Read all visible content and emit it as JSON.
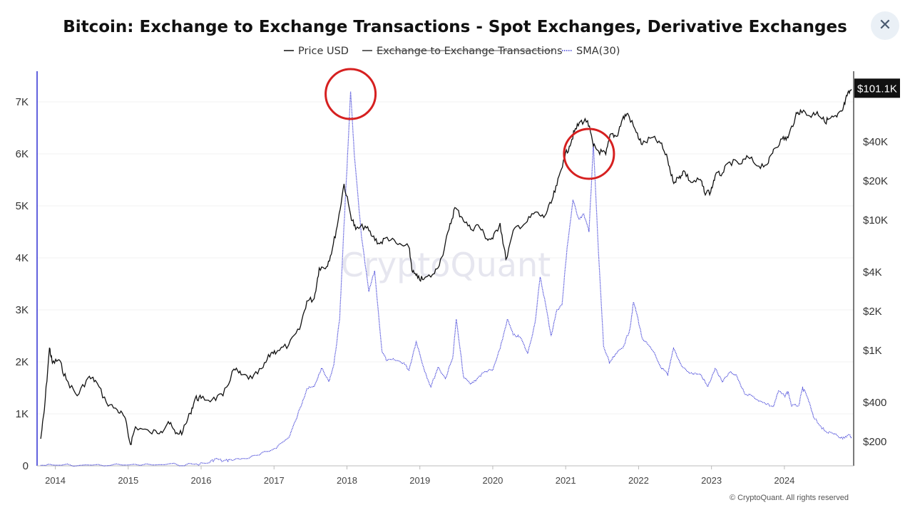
{
  "close_icon_glyph": "✕",
  "chart_data": {
    "type": "line",
    "title": "Bitcoin: Exchange to Exchange Transactions - Spot Exchanges, Derivative Exchanges",
    "legend": [
      {
        "name": "Price USD",
        "color": "#111111",
        "style": "solid",
        "hidden": false
      },
      {
        "name": "Exchange to Exchange Transactions",
        "color": "#333333",
        "style": "solid",
        "hidden": true
      },
      {
        "name": "SMA(30)",
        "color": "#3a3ad6",
        "style": "dotted",
        "hidden": false
      }
    ],
    "legend_position": "top-center",
    "x_ticks": [
      "2014",
      "2015",
      "2016",
      "2017",
      "2018",
      "2019",
      "2020",
      "2021",
      "2022",
      "2023",
      "2024"
    ],
    "x_range": [
      2013.75,
      2024.95
    ],
    "y_left": {
      "ticks": [
        "0",
        "1K",
        "2K",
        "3K",
        "4K",
        "5K",
        "6K",
        "7K"
      ],
      "range": [
        0,
        7300
      ]
    },
    "y_right": {
      "scale": "log",
      "ticks": [
        "$200",
        "$400",
        "$1K",
        "$2K",
        "$4K",
        "$10K",
        "$20K",
        "$40K"
      ],
      "tick_values": [
        200,
        400,
        1000,
        2000,
        4000,
        10000,
        20000,
        40000
      ],
      "last_price_label": "$101.1K"
    },
    "grid": "horizontal",
    "series": [
      {
        "name": "Price USD",
        "axis": "right",
        "points": [
          [
            2013.8,
            210
          ],
          [
            2013.85,
            350
          ],
          [
            2013.92,
            1050
          ],
          [
            2013.96,
            800
          ],
          [
            2014.05,
            850
          ],
          [
            2014.15,
            600
          ],
          [
            2014.3,
            450
          ],
          [
            2014.45,
            620
          ],
          [
            2014.55,
            590
          ],
          [
            2014.7,
            400
          ],
          [
            2014.85,
            350
          ],
          [
            2014.95,
            310
          ],
          [
            2015.03,
            190
          ],
          [
            2015.1,
            260
          ],
          [
            2015.3,
            235
          ],
          [
            2015.45,
            240
          ],
          [
            2015.55,
            285
          ],
          [
            2015.65,
            230
          ],
          [
            2015.75,
            240
          ],
          [
            2015.85,
            330
          ],
          [
            2015.92,
            430
          ],
          [
            2016.0,
            430
          ],
          [
            2016.15,
            420
          ],
          [
            2016.3,
            450
          ],
          [
            2016.45,
            720
          ],
          [
            2016.55,
            650
          ],
          [
            2016.7,
            610
          ],
          [
            2016.85,
            740
          ],
          [
            2016.96,
            960
          ],
          [
            2017.05,
            1000
          ],
          [
            2017.2,
            1100
          ],
          [
            2017.35,
            1450
          ],
          [
            2017.45,
            2400
          ],
          [
            2017.55,
            2500
          ],
          [
            2017.62,
            4300
          ],
          [
            2017.72,
            4400
          ],
          [
            2017.8,
            6000
          ],
          [
            2017.88,
            10000
          ],
          [
            2017.96,
            19000
          ],
          [
            2018.05,
            11000
          ],
          [
            2018.12,
            8500
          ],
          [
            2018.25,
            9000
          ],
          [
            2018.35,
            7500
          ],
          [
            2018.45,
            6600
          ],
          [
            2018.55,
            7400
          ],
          [
            2018.7,
            6500
          ],
          [
            2018.85,
            6200
          ],
          [
            2018.9,
            4000
          ],
          [
            2018.97,
            3600
          ],
          [
            2019.05,
            3500
          ],
          [
            2019.2,
            3900
          ],
          [
            2019.3,
            5200
          ],
          [
            2019.4,
            8500
          ],
          [
            2019.48,
            12500
          ],
          [
            2019.58,
            10500
          ],
          [
            2019.7,
            8500
          ],
          [
            2019.8,
            9200
          ],
          [
            2019.92,
            7200
          ],
          [
            2020.0,
            7200
          ],
          [
            2020.1,
            9500
          ],
          [
            2020.18,
            5000
          ],
          [
            2020.3,
            8700
          ],
          [
            2020.45,
            9500
          ],
          [
            2020.58,
            11500
          ],
          [
            2020.7,
            10500
          ],
          [
            2020.8,
            13500
          ],
          [
            2020.88,
            18500
          ],
          [
            2020.97,
            29000
          ],
          [
            2021.05,
            37000
          ],
          [
            2021.12,
            48000
          ],
          [
            2021.2,
            57000
          ],
          [
            2021.3,
            58000
          ],
          [
            2021.38,
            37000
          ],
          [
            2021.45,
            34000
          ],
          [
            2021.55,
            32000
          ],
          [
            2021.62,
            46000
          ],
          [
            2021.7,
            44000
          ],
          [
            2021.78,
            60000
          ],
          [
            2021.85,
            66000
          ],
          [
            2021.97,
            47000
          ],
          [
            2022.05,
            38000
          ],
          [
            2022.18,
            43000
          ],
          [
            2022.3,
            39000
          ],
          [
            2022.4,
            29000
          ],
          [
            2022.47,
            20000
          ],
          [
            2022.55,
            21000
          ],
          [
            2022.62,
            24000
          ],
          [
            2022.72,
            19500
          ],
          [
            2022.85,
            20500
          ],
          [
            2022.9,
            16500
          ],
          [
            2022.99,
            16500
          ],
          [
            2023.05,
            22000
          ],
          [
            2023.15,
            23000
          ],
          [
            2023.25,
            28000
          ],
          [
            2023.4,
            27000
          ],
          [
            2023.5,
            30500
          ],
          [
            2023.65,
            26000
          ],
          [
            2023.78,
            27500
          ],
          [
            2023.85,
            35000
          ],
          [
            2023.97,
            42000
          ],
          [
            2024.05,
            43000
          ],
          [
            2024.15,
            62000
          ],
          [
            2024.22,
            70000
          ],
          [
            2024.35,
            63000
          ],
          [
            2024.45,
            68000
          ],
          [
            2024.55,
            57000
          ],
          [
            2024.62,
            60000
          ],
          [
            2024.72,
            62000
          ],
          [
            2024.8,
            70000
          ],
          [
            2024.86,
            90000
          ],
          [
            2024.92,
            101100
          ]
        ]
      },
      {
        "name": "SMA(30)",
        "axis": "left",
        "points": [
          [
            2013.8,
            10
          ],
          [
            2014.0,
            12
          ],
          [
            2014.5,
            14
          ],
          [
            2015.0,
            16
          ],
          [
            2015.5,
            22
          ],
          [
            2015.9,
            30
          ],
          [
            2016.1,
            55
          ],
          [
            2016.2,
            140
          ],
          [
            2016.3,
            90
          ],
          [
            2016.4,
            120
          ],
          [
            2016.6,
            140
          ],
          [
            2016.8,
            210
          ],
          [
            2017.0,
            330
          ],
          [
            2017.2,
            540
          ],
          [
            2017.3,
            880
          ],
          [
            2017.4,
            1280
          ],
          [
            2017.45,
            1480
          ],
          [
            2017.55,
            1520
          ],
          [
            2017.65,
            1880
          ],
          [
            2017.75,
            1620
          ],
          [
            2017.82,
            1940
          ],
          [
            2017.9,
            2820
          ],
          [
            2017.95,
            4350
          ],
          [
            2018.0,
            5700
          ],
          [
            2018.05,
            7200
          ],
          [
            2018.1,
            6000
          ],
          [
            2018.2,
            4400
          ],
          [
            2018.3,
            3350
          ],
          [
            2018.38,
            3750
          ],
          [
            2018.48,
            2200
          ],
          [
            2018.55,
            2020
          ],
          [
            2018.65,
            2040
          ],
          [
            2018.78,
            1980
          ],
          [
            2018.85,
            1840
          ],
          [
            2018.95,
            2400
          ],
          [
            2019.05,
            1900
          ],
          [
            2019.15,
            1520
          ],
          [
            2019.25,
            1900
          ],
          [
            2019.35,
            1680
          ],
          [
            2019.45,
            2070
          ],
          [
            2019.5,
            2820
          ],
          [
            2019.6,
            1700
          ],
          [
            2019.7,
            1570
          ],
          [
            2019.8,
            1700
          ],
          [
            2019.9,
            1820
          ],
          [
            2020.0,
            1840
          ],
          [
            2020.1,
            2250
          ],
          [
            2020.2,
            2820
          ],
          [
            2020.28,
            2520
          ],
          [
            2020.38,
            2470
          ],
          [
            2020.48,
            2160
          ],
          [
            2020.58,
            2750
          ],
          [
            2020.65,
            3630
          ],
          [
            2020.72,
            3140
          ],
          [
            2020.8,
            2500
          ],
          [
            2020.88,
            3000
          ],
          [
            2020.95,
            3100
          ],
          [
            2021.02,
            4200
          ],
          [
            2021.1,
            5100
          ],
          [
            2021.18,
            4750
          ],
          [
            2021.25,
            4840
          ],
          [
            2021.32,
            4500
          ],
          [
            2021.38,
            6200
          ],
          [
            2021.45,
            4100
          ],
          [
            2021.52,
            2300
          ],
          [
            2021.6,
            1980
          ],
          [
            2021.7,
            2160
          ],
          [
            2021.8,
            2320
          ],
          [
            2021.88,
            2630
          ],
          [
            2021.93,
            3150
          ],
          [
            2021.98,
            2900
          ],
          [
            2022.05,
            2450
          ],
          [
            2022.2,
            2200
          ],
          [
            2022.3,
            1910
          ],
          [
            2022.4,
            1750
          ],
          [
            2022.48,
            2260
          ],
          [
            2022.58,
            1950
          ],
          [
            2022.7,
            1780
          ],
          [
            2022.85,
            1760
          ],
          [
            2022.95,
            1520
          ],
          [
            2023.05,
            1870
          ],
          [
            2023.15,
            1610
          ],
          [
            2023.25,
            1800
          ],
          [
            2023.35,
            1720
          ],
          [
            2023.45,
            1400
          ],
          [
            2023.55,
            1350
          ],
          [
            2023.7,
            1220
          ],
          [
            2023.85,
            1140
          ],
          [
            2023.92,
            1440
          ],
          [
            2024.0,
            1340
          ],
          [
            2024.05,
            1430
          ],
          [
            2024.1,
            1150
          ],
          [
            2024.2,
            1170
          ],
          [
            2024.25,
            1500
          ],
          [
            2024.32,
            1310
          ],
          [
            2024.4,
            930
          ],
          [
            2024.5,
            760
          ],
          [
            2024.6,
            630
          ],
          [
            2024.7,
            620
          ],
          [
            2024.8,
            520
          ],
          [
            2024.88,
            600
          ],
          [
            2024.92,
            560
          ]
        ]
      }
    ],
    "annotations": [
      {
        "shape": "circle",
        "color": "#d62020",
        "at": [
          2018.05,
          7150
        ],
        "axis": "left"
      },
      {
        "shape": "circle",
        "color": "#d62020",
        "at": [
          2021.32,
          6000
        ],
        "axis": "left"
      }
    ],
    "watermark": "CryptoQuant",
    "credit": "© CryptoQuant. All rights reserved"
  }
}
